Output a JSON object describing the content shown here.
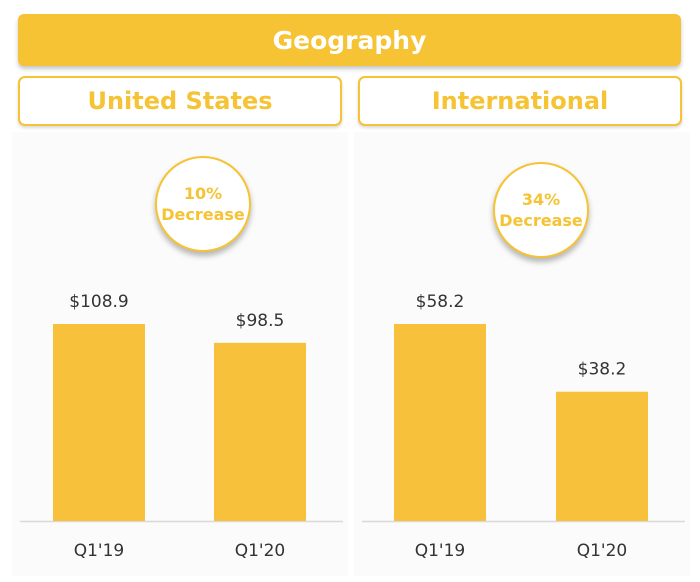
{
  "header": {
    "title": "Geography"
  },
  "colors": {
    "accent": "#F5C333",
    "bar": "#F7C13B",
    "axis": "#D9D9D9",
    "text": "#333333"
  },
  "chart_data": [
    {
      "type": "bar",
      "title": "United States",
      "badge": {
        "percent": "10%",
        "text": "Decrease"
      },
      "categories": [
        "Q1'19",
        "Q1'20"
      ],
      "values": [
        108.9,
        98.5
      ],
      "value_labels": [
        "$108.9",
        "$98.5"
      ],
      "ylim": [
        0,
        108.9
      ],
      "grid": false,
      "legend": "none"
    },
    {
      "type": "bar",
      "title": "International",
      "badge": {
        "percent": "34%",
        "text": "Decrease"
      },
      "categories": [
        "Q1'19",
        "Q1'20"
      ],
      "values": [
        58.2,
        38.2
      ],
      "value_labels": [
        "$58.2",
        "$38.2"
      ],
      "ylim": [
        0,
        58.2
      ],
      "grid": false,
      "legend": "none"
    }
  ]
}
